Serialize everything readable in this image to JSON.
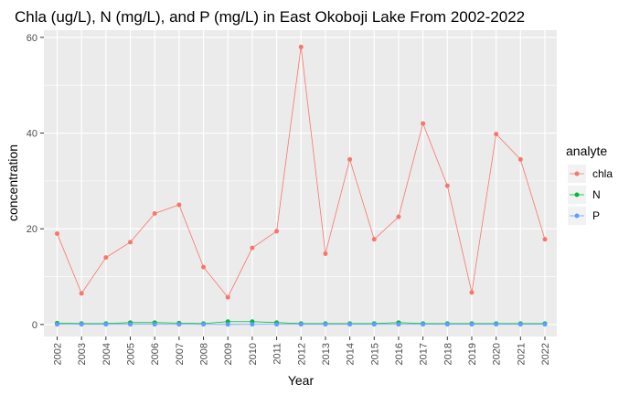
{
  "chart_data": {
    "type": "line",
    "title": "Chla (ug/L), N (mg/L), and P (mg/L) in East Okoboji Lake From 2002-2022",
    "xlabel": "Year",
    "ylabel": "concentration",
    "x": [
      "2002",
      "2003",
      "2004",
      "2005",
      "2006",
      "2007",
      "2008",
      "2009",
      "2010",
      "2011",
      "2012",
      "2013",
      "2014",
      "2015",
      "2016",
      "2017",
      "2018",
      "2019",
      "2020",
      "2021",
      "2022"
    ],
    "ylim": [
      -2.5,
      61.5
    ],
    "yticks": [
      "0",
      "20",
      "40",
      "60"
    ],
    "grid": true,
    "legend": {
      "title": "analyte",
      "placement": "right"
    },
    "series": [
      {
        "name": "chla",
        "color": "#F8766D",
        "values": [
          19,
          6.5,
          14,
          17.2,
          23.2,
          25,
          12,
          5.7,
          16,
          19.5,
          58,
          14.8,
          34.5,
          17.8,
          22.5,
          42,
          29,
          6.7,
          39.8,
          34.5,
          17.8
        ]
      },
      {
        "name": "N",
        "color": "#00BA38",
        "values": [
          0.3,
          0.2,
          0.2,
          0.4,
          0.4,
          0.3,
          0.2,
          0.6,
          0.6,
          0.4,
          0.2,
          0.2,
          0.2,
          0.2,
          0.4,
          0.2,
          0.2,
          0.2,
          0.2,
          0.2,
          0.2
        ]
      },
      {
        "name": "P",
        "color": "#619CFF",
        "values": [
          0.03,
          0.03,
          0.03,
          0.03,
          0.03,
          0.03,
          0.03,
          0.02,
          0.03,
          0.03,
          0.03,
          0.03,
          0.03,
          0.03,
          0.03,
          0.03,
          0.03,
          0.03,
          0.03,
          0.03,
          0.03
        ]
      }
    ]
  }
}
